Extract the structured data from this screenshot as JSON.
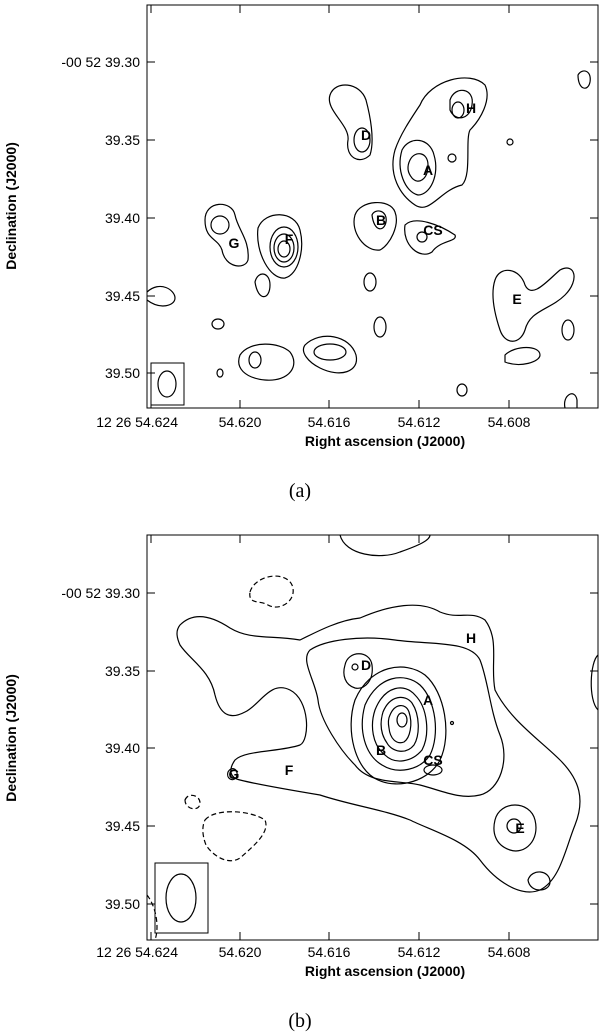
{
  "panels": [
    {
      "caption": "(a)",
      "y_axis_label": "Declination (J2000)",
      "x_axis_label": "Right ascension (J2000)",
      "y_tick_labels": [
        "-00 52 39.30",
        "39.35",
        "39.40",
        "39.45",
        "39.50"
      ],
      "x_tick_labels": [
        "12 26 54.624",
        "54.620",
        "54.616",
        "54.612",
        "54.608"
      ],
      "source_labels": [
        "H",
        "D",
        "A",
        "B",
        "CS",
        "G",
        "F",
        "E"
      ]
    },
    {
      "caption": "(b)",
      "y_axis_label": "Declination (J2000)",
      "x_axis_label": "Right ascension (J2000)",
      "y_tick_labels": [
        "-00 52 39.30",
        "39.35",
        "39.40",
        "39.45",
        "39.50"
      ],
      "x_tick_labels": [
        "12 26 54.624",
        "54.620",
        "54.616",
        "54.612",
        "54.608"
      ],
      "source_labels": [
        "H",
        "D",
        "A",
        "B",
        "CS",
        "G",
        "F",
        "E"
      ]
    }
  ]
}
